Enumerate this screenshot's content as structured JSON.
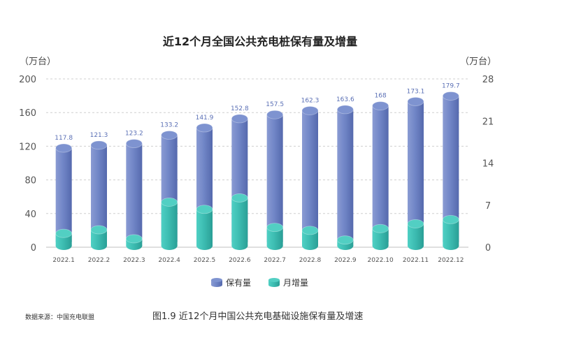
{
  "chart_data": {
    "type": "bar",
    "title": "近12个月全国公共充电桩保有量及增量",
    "left_unit": "（万台）",
    "right_unit": "（万台）",
    "categories": [
      "2022.1",
      "2022.2",
      "2022.3",
      "2022.4",
      "2022.5",
      "2022.6",
      "2022.7",
      "2022.8",
      "2022.9",
      "2022.10",
      "2022.11",
      "2022.12"
    ],
    "series": [
      {
        "name": "保有量",
        "axis": "left",
        "values": [
          117.8,
          121.3,
          123.2,
          133.2,
          141.9,
          152.8,
          157.5,
          162.3,
          163.6,
          168,
          173.1,
          179.7
        ],
        "labels": [
          "117.8",
          "121.3",
          "123.2",
          "133.2",
          "141.9",
          "152.8",
          "157.5",
          "162.3",
          "163.6",
          "168",
          "173.1",
          "179.7"
        ],
        "color": "#6f86c4"
      },
      {
        "name": "月增量",
        "axis": "right",
        "values": [
          2.3,
          2.9,
          1.4,
          7.5,
          6.3,
          8.2,
          3.3,
          2.8,
          1.2,
          3.1,
          3.9,
          4.6
        ],
        "color": "#3dbdb2"
      }
    ],
    "left_axis": {
      "ticks": [
        "0",
        "40",
        "80",
        "120",
        "160",
        "200"
      ],
      "ylim": [
        0,
        200
      ]
    },
    "right_axis": {
      "ticks": [
        "0",
        "7",
        "14",
        "21",
        "28"
      ],
      "ylim": [
        0,
        28
      ]
    },
    "grid": true,
    "legend_position": "bottom"
  },
  "footer": {
    "source": "数据来源：中国充电联盟",
    "caption": "图1.9  近12个月中国公共充电基础设施保有量及增速"
  }
}
